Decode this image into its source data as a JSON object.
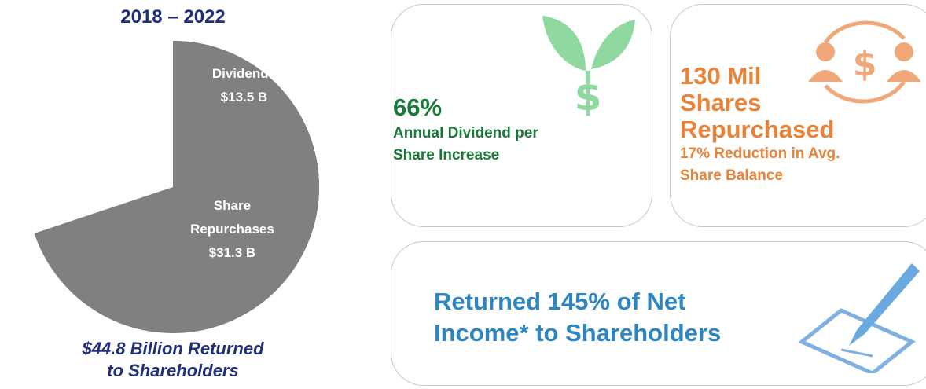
{
  "chart_data": {
    "type": "pie",
    "title": "2018 – 2022",
    "categories": [
      "Dividends",
      "Share Repurchases"
    ],
    "values": [
      13.5,
      31.3
    ],
    "value_labels": [
      "$13.5 B",
      "$31.3 B"
    ],
    "colors": [
      "#003399",
      "#808080"
    ],
    "annotation": [
      "$44.8 Billion Returned",
      "to Shareholders"
    ]
  },
  "cards": [
    {
      "headline": [
        "66%"
      ],
      "body": [
        "Annual Dividend per",
        "Share Increase"
      ]
    },
    {
      "headline": [
        "130 Mil",
        "Shares",
        "Repurchased"
      ],
      "body": [
        "17% Reduction in Avg.",
        "Share Balance"
      ]
    },
    {
      "headline": [
        "Returned 145% of Net",
        "Income* to Shareholders"
      ],
      "body": []
    }
  ]
}
